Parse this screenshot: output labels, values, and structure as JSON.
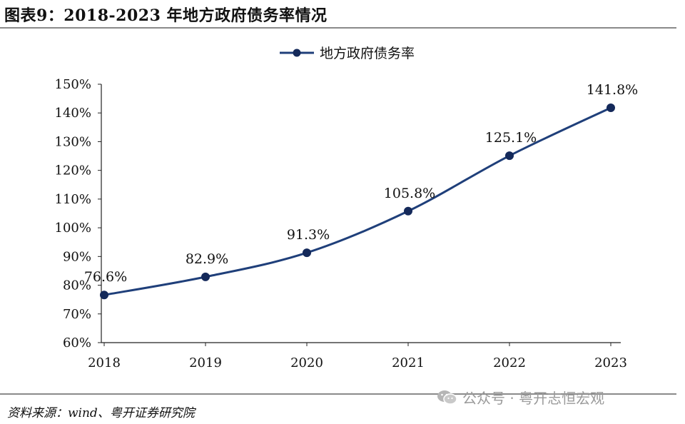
{
  "header": {
    "title": "图表9：2018-2023 年地方政府债务率情况"
  },
  "footer": {
    "source": "资料来源：wind、粤开证券研究院",
    "watermark": "公众号 · 粤开志恒宏观",
    "watermark_icon": "wechat-icon"
  },
  "colors": {
    "series": "#1f3f7a",
    "marker": "#14295a",
    "axis": "#222222",
    "rule": "#8a8a8a"
  },
  "chart_data": {
    "type": "line",
    "x": [
      "2018",
      "2019",
      "2020",
      "2021",
      "2022",
      "2023"
    ],
    "series": [
      {
        "name": "地方政府债务率",
        "values": [
          76.6,
          82.9,
          91.3,
          105.8,
          125.1,
          141.8
        ],
        "labels": [
          "76.6%",
          "82.9%",
          "91.3%",
          "105.8%",
          "125.1%",
          "141.8%"
        ],
        "smooth": true
      }
    ],
    "y_ticks": [
      60,
      70,
      80,
      90,
      100,
      110,
      120,
      130,
      140,
      150
    ],
    "y_tick_labels": [
      "60%",
      "70%",
      "80%",
      "90%",
      "100%",
      "110%",
      "120%",
      "130%",
      "140%",
      "150%"
    ],
    "ylim": [
      60,
      150
    ],
    "y_unit": "%",
    "xlabel": "",
    "ylabel": "",
    "grid": false,
    "legend_position": "top-center",
    "markers": true
  }
}
